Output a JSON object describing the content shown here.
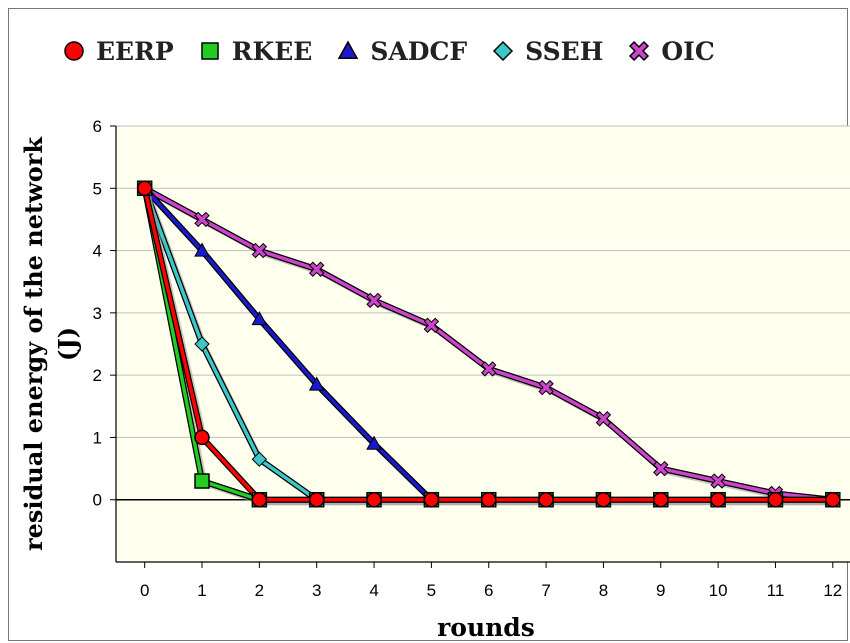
{
  "chart_data": {
    "type": "line",
    "xlabel": "rounds",
    "ylabel_line1": "residual energy of the network",
    "ylabel_line2": "(J)",
    "x": [
      0,
      1,
      2,
      3,
      4,
      5,
      6,
      7,
      8,
      9,
      10,
      11,
      12
    ],
    "xlim": [
      -0.5,
      12.3
    ],
    "ylim": [
      -1,
      6
    ],
    "yticks": [
      0,
      1,
      2,
      3,
      4,
      5,
      6
    ],
    "grid": true,
    "legend_position": "top",
    "series": [
      {
        "name": "EERP",
        "color": "#ff0000",
        "marker": "circle",
        "points": [
          [
            0,
            5
          ],
          [
            1,
            1
          ],
          [
            2,
            0
          ],
          [
            3,
            0
          ],
          [
            4,
            0
          ],
          [
            5,
            0
          ],
          [
            6,
            0
          ],
          [
            7,
            0
          ],
          [
            8,
            0
          ],
          [
            9,
            0
          ],
          [
            10,
            0
          ],
          [
            11,
            0
          ],
          [
            12,
            0
          ]
        ]
      },
      {
        "name": "RKEE",
        "color": "#22cc22",
        "marker": "square",
        "points": [
          [
            0,
            5
          ],
          [
            1,
            0.3
          ],
          [
            2,
            0
          ],
          [
            3,
            0
          ],
          [
            4,
            0
          ],
          [
            5,
            0
          ],
          [
            6,
            0
          ],
          [
            7,
            0
          ],
          [
            8,
            0
          ],
          [
            9,
            0
          ],
          [
            10,
            0
          ],
          [
            11,
            0
          ],
          [
            12,
            0
          ]
        ]
      },
      {
        "name": "SADCF",
        "color": "#1a1acc",
        "marker": "triangle",
        "points": [
          [
            0,
            5
          ],
          [
            1,
            4
          ],
          [
            2,
            2.9
          ],
          [
            3,
            1.85
          ],
          [
            4,
            0.9
          ],
          [
            5,
            0
          ]
        ]
      },
      {
        "name": "SSEH",
        "color": "#3cc8c8",
        "marker": "diamond",
        "points": [
          [
            0,
            5
          ],
          [
            1,
            2.5
          ],
          [
            2,
            0.65
          ],
          [
            3,
            0
          ]
        ]
      },
      {
        "name": "OIC",
        "color": "#cc44cc",
        "marker": "cross",
        "points": [
          [
            0,
            5
          ],
          [
            1,
            4.5
          ],
          [
            2,
            4
          ],
          [
            3,
            3.7
          ],
          [
            4,
            3.2
          ],
          [
            5,
            2.8
          ],
          [
            6,
            2.1
          ],
          [
            7,
            1.8
          ],
          [
            8,
            1.3
          ],
          [
            9,
            0.5
          ],
          [
            10,
            0.3
          ],
          [
            11,
            0.1
          ],
          [
            12,
            0
          ]
        ]
      }
    ]
  }
}
